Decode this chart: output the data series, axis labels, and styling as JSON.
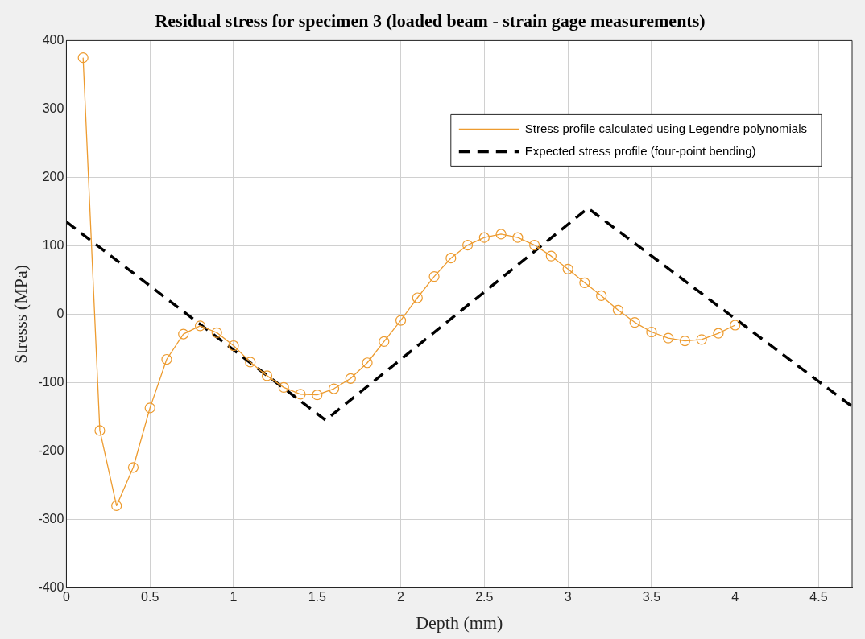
{
  "chart_data": {
    "type": "line",
    "title": "Residual stress for specimen 3 (loaded beam - strain gage measurements)",
    "xlabel": "Depth (mm)",
    "ylabel": "Stresss (MPa)",
    "xlim": [
      0,
      4.7
    ],
    "xticks": [
      0,
      0.5,
      1,
      1.5,
      2,
      2.5,
      3,
      3.5,
      4,
      4.5
    ],
    "ylim": [
      -400,
      400
    ],
    "yticks": [
      -400,
      -300,
      -200,
      -100,
      0,
      100,
      200,
      300,
      400
    ],
    "grid": true,
    "legend": "top right",
    "series": [
      {
        "name": "Stress profile calculated using Legendre polynomials",
        "color": "#ed9b2f",
        "marker": "circle",
        "line_style": "solid",
        "x": [
          0.1,
          0.2,
          0.3,
          0.4,
          0.5,
          0.6,
          0.7,
          0.8,
          0.9,
          1.0,
          1.1,
          1.2,
          1.3,
          1.4,
          1.5,
          1.6,
          1.7,
          1.8,
          1.9,
          2.0,
          2.1,
          2.2,
          2.3,
          2.4,
          2.5,
          2.6,
          2.7,
          2.8,
          2.9,
          3.0,
          3.1,
          3.2,
          3.3,
          3.4,
          3.5,
          3.6,
          3.7,
          3.8,
          3.9,
          4.0
        ],
        "values": [
          375,
          -170,
          -280,
          -224,
          -137,
          -66,
          -29,
          -17,
          -27,
          -46,
          -70,
          -90,
          -107,
          -117,
          -118,
          -109,
          -94,
          -71,
          -40,
          -9,
          24,
          55,
          82,
          101,
          112,
          117,
          112,
          101,
          85,
          66,
          46,
          27,
          6,
          -12,
          -26,
          -35,
          -39,
          -37,
          -28,
          -16
        ]
      },
      {
        "name": "Expected stress profile (four-point bending)",
        "color": "#000000",
        "marker": "none",
        "line_style": "dashed",
        "x": [
          0,
          1.55,
          3.12,
          4.7
        ],
        "values": [
          135,
          -155,
          155,
          -135
        ]
      }
    ]
  }
}
